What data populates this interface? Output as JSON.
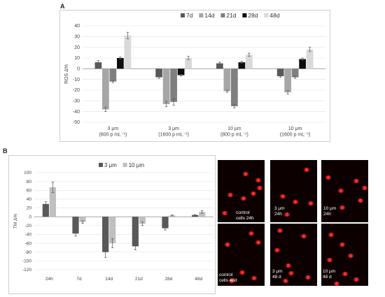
{
  "panel_a_label": "A",
  "panel_b_label": "B",
  "chart_data": [
    {
      "type": "bar",
      "ylabel": "ROS Δ%",
      "ylim": [
        -50,
        40
      ],
      "yticks": [
        -50,
        -40,
        -30,
        -20,
        -10,
        0,
        10,
        20,
        30,
        40
      ],
      "legend_position": "top-right",
      "grid": true,
      "categories": [
        [
          "3 μm",
          "(800 p mL⁻¹)"
        ],
        [
          "3 μm",
          "(1600 p mL⁻¹)"
        ],
        [
          "10 μm",
          "(800 p mL⁻¹)"
        ],
        [
          "10 μm",
          "(1600 p mL⁻¹)"
        ]
      ],
      "series": [
        {
          "name": "7d",
          "color": "#595959",
          "values": [
            6,
            -8,
            5,
            -7
          ],
          "errors": [
            1.5,
            1,
            1,
            1
          ]
        },
        {
          "name": "14d",
          "color": "#a6a6a6",
          "values": [
            -38,
            -33,
            -21,
            -22
          ],
          "errors": [
            2,
            2.5,
            1,
            1.5
          ]
        },
        {
          "name": "21d",
          "color": "#7f7f7f",
          "values": [
            -12,
            -31,
            -35,
            -8
          ],
          "errors": [
            1,
            3,
            1.5,
            1
          ]
        },
        {
          "name": "28d",
          "color": "#0d0d0d",
          "values": [
            10,
            -6,
            6,
            9
          ],
          "errors": [
            1,
            0.8,
            1,
            1
          ]
        },
        {
          "name": "48d",
          "color": "#d9d9d9",
          "values": [
            31,
            10,
            13,
            18
          ],
          "errors": [
            3,
            1.5,
            1.5,
            2
          ]
        }
      ]
    },
    {
      "type": "bar",
      "ylabel": "TM Δ%",
      "ylim": [
        -120,
        100
      ],
      "yticks": [
        -120,
        -100,
        -80,
        -60,
        -40,
        -20,
        0,
        20,
        40,
        60,
        80,
        100
      ],
      "legend_position": "top",
      "grid": true,
      "categories": [
        "24h",
        "7d",
        "14d",
        "21d",
        "28d",
        "48d"
      ],
      "series": [
        {
          "name": "3 μm",
          "color": "#595959",
          "values": [
            29,
            -38,
            -80,
            -67,
            -26,
            4
          ],
          "errors": [
            5,
            6,
            12,
            8,
            4,
            1
          ]
        },
        {
          "name": "10 μm",
          "color": "#bfbfbf",
          "values": [
            67,
            -12,
            -60,
            -16,
            3,
            11
          ],
          "errors": [
            12,
            3,
            10,
            4,
            1,
            3
          ]
        }
      ]
    }
  ],
  "micrographs": [
    {
      "label": "control\ncells 24h"
    },
    {
      "label": "3 μm\n24h"
    },
    {
      "label": "10 μm\n24h"
    },
    {
      "label": "control\ncells 48d"
    },
    {
      "label": "3 μm\n48 d"
    },
    {
      "label": "10 μm\n48 d"
    }
  ],
  "colors": {
    "fluorescence": "#ff2a2a",
    "micrograph_background": "#0d0000"
  }
}
